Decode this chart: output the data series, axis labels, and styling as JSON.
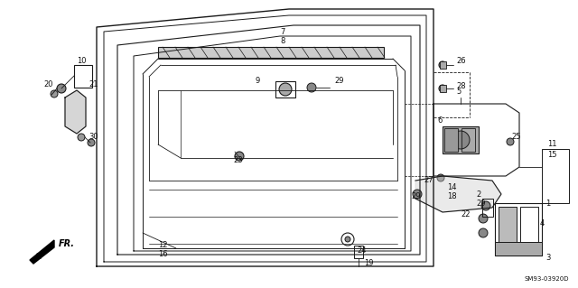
{
  "diagram_code": "SM93-03920D",
  "bg_color": "#ffffff",
  "line_color": "#1a1a1a",
  "text_color": "#111111",
  "fig_width": 6.4,
  "fig_height": 3.19,
  "dpi": 100
}
